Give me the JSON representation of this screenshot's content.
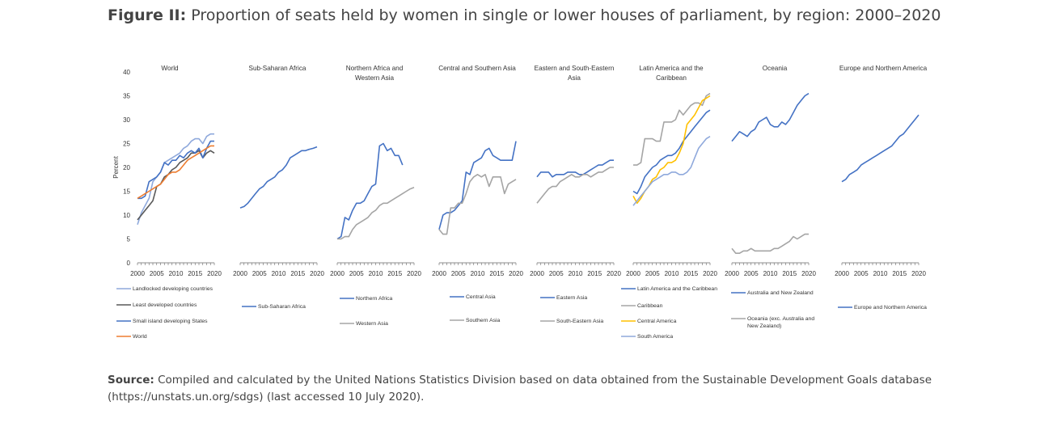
{
  "figure": {
    "label": "Figure II:",
    "title": "Proportion of seats held by women in single or lower houses of parliament, by region: 2000–2020"
  },
  "source": {
    "label": "Source:",
    "text": "Compiled and calculated by the United Nations Statistics Division based on data obtained from the Sustainable Development Goals database (https://unstats.un.org/sdgs) (last accessed 10 July 2020)."
  },
  "colors": {
    "blue": "#4472c4",
    "gray": "#a5a5a5",
    "dark": "#595959",
    "lightblue": "#8fa9dc",
    "orange": "#ed7d31",
    "yellow": "#ffc000"
  },
  "chart_data": {
    "type": "line",
    "ylabel": "Percent",
    "ylim": [
      0,
      40
    ],
    "yticks": [
      "0",
      "5",
      "10",
      "15",
      "20",
      "25",
      "30",
      "35",
      "40"
    ],
    "xticks": [
      "2000",
      "2005",
      "2010",
      "2015",
      "2020"
    ],
    "x": [
      2000,
      2001,
      2002,
      2003,
      2004,
      2005,
      2006,
      2007,
      2008,
      2009,
      2010,
      2011,
      2012,
      2013,
      2014,
      2015,
      2016,
      2017,
      2018,
      2019,
      2020
    ],
    "panels": [
      {
        "title": "World",
        "series": [
          {
            "name": "Landlocked developing countries",
            "color": "#8fa9dc",
            "values": [
              8.0,
              10.5,
              12.0,
              13.5,
              17.0,
              18.0,
              19.0,
              21.0,
              21.5,
              22.0,
              22.5,
              23.0,
              24.0,
              24.5,
              25.5,
              26.0,
              26.0,
              25.0,
              26.5,
              27.0,
              27.0
            ]
          },
          {
            "name": "Least developed countries",
            "color": "#595959",
            "values": [
              9.0,
              10.0,
              11.0,
              12.0,
              13.0,
              16.0,
              16.5,
              18.0,
              18.5,
              19.5,
              20.0,
              21.0,
              21.5,
              22.0,
              23.0,
              23.0,
              23.5,
              22.0,
              23.0,
              23.5,
              23.0
            ]
          },
          {
            "name": "Small island developing States",
            "color": "#4472c4",
            "values": [
              13.5,
              13.5,
              14.0,
              17.0,
              17.5,
              18.0,
              19.0,
              21.0,
              20.5,
              21.5,
              21.5,
              22.5,
              22.0,
              23.0,
              23.5,
              23.0,
              24.0,
              22.0,
              24.0,
              25.5,
              25.5
            ]
          },
          {
            "name": "World",
            "color": "#ed7d31",
            "values": [
              13.5,
              14.0,
              14.5,
              15.0,
              15.5,
              16.0,
              16.5,
              17.5,
              18.5,
              19.0,
              19.0,
              19.5,
              20.5,
              21.5,
              22.0,
              22.5,
              23.0,
              23.5,
              24.0,
              24.5,
              24.5
            ]
          }
        ]
      },
      {
        "title": "Sub-Saharan Africa",
        "series": [
          {
            "name": "Sub-Saharan Africa",
            "color": "#4472c4",
            "values": [
              11.5,
              11.8,
              12.5,
              13.5,
              14.5,
              15.5,
              16.0,
              17.0,
              17.5,
              18.0,
              19.0,
              19.5,
              20.5,
              22.0,
              22.5,
              23.0,
              23.5,
              23.5,
              23.8,
              24.0,
              24.3
            ]
          }
        ]
      },
      {
        "title": "Northern Africa and Western Asia",
        "series": [
          {
            "name": "Northern Africa",
            "color": "#4472c4",
            "values": [
              5.0,
              5.5,
              9.5,
              9.0,
              11.0,
              12.5,
              12.5,
              13.0,
              14.5,
              16.0,
              16.5,
              24.5,
              25.0,
              23.5,
              24.0,
              22.5,
              22.5,
              20.5,
              null,
              null,
              null
            ]
          },
          {
            "name": "Western Asia",
            "color": "#a5a5a5",
            "values": [
              5.0,
              5.0,
              5.5,
              5.5,
              7.0,
              8.0,
              8.5,
              9.0,
              9.5,
              10.5,
              11.0,
              12.0,
              12.5,
              12.5,
              13.0,
              13.5,
              14.0,
              14.5,
              15.0,
              15.5,
              15.8
            ]
          }
        ]
      },
      {
        "title": "Central and Southern Asia",
        "series": [
          {
            "name": "Central Asia",
            "color": "#4472c4",
            "values": [
              7.0,
              10.0,
              10.5,
              10.5,
              11.0,
              12.0,
              13.0,
              19.0,
              18.5,
              21.0,
              21.5,
              22.0,
              23.5,
              24.0,
              22.5,
              22.0,
              21.5,
              21.5,
              21.5,
              21.5,
              25.5
            ]
          },
          {
            "name": "Southern Asia",
            "color": "#a5a5a5",
            "values": [
              7.0,
              6.0,
              6.0,
              11.5,
              11.5,
              12.5,
              12.5,
              14.5,
              17.0,
              18.0,
              18.5,
              18.0,
              18.5,
              16.0,
              18.0,
              18.0,
              18.0,
              14.5,
              16.5,
              17.0,
              17.5
            ]
          }
        ]
      },
      {
        "title": "Eastern and South-Eastern Asia",
        "series": [
          {
            "name": "Eastern Asia",
            "color": "#4472c4",
            "values": [
              18.0,
              19.0,
              19.0,
              19.0,
              18.0,
              18.5,
              18.5,
              18.5,
              19.0,
              19.0,
              19.0,
              18.5,
              18.5,
              19.0,
              19.5,
              20.0,
              20.5,
              20.5,
              21.0,
              21.5,
              21.5
            ]
          },
          {
            "name": "South-Eastern Asia",
            "color": "#a5a5a5",
            "values": [
              12.5,
              13.5,
              14.5,
              15.5,
              16.0,
              16.0,
              17.0,
              17.5,
              18.0,
              18.5,
              18.0,
              18.0,
              18.5,
              18.5,
              18.0,
              18.5,
              19.0,
              19.0,
              19.5,
              20.0,
              20.0
            ]
          }
        ]
      },
      {
        "title": "Latin America and the Caribbean",
        "series": [
          {
            "name": "Latin America and the Caribbean",
            "color": "#4472c4",
            "values": [
              15.0,
              14.5,
              16.0,
              18.0,
              19.0,
              20.0,
              20.5,
              21.5,
              22.0,
              22.5,
              22.5,
              23.0,
              24.0,
              25.5,
              26.5,
              27.5,
              28.5,
              29.5,
              30.5,
              31.5,
              32.0
            ]
          },
          {
            "name": "Caribbean",
            "color": "#a5a5a5",
            "values": [
              20.5,
              20.5,
              21.0,
              26.0,
              26.0,
              26.0,
              25.5,
              25.5,
              29.5,
              29.5,
              29.5,
              30.0,
              32.0,
              31.0,
              32.0,
              33.0,
              33.5,
              33.5,
              33.0,
              35.0,
              35.5
            ]
          },
          {
            "name": "Central America",
            "color": "#ffc000",
            "values": [
              14.0,
              12.5,
              13.5,
              15.0,
              16.0,
              17.5,
              18.0,
              19.5,
              20.0,
              21.0,
              21.0,
              21.5,
              23.0,
              25.0,
              29.0,
              30.0,
              31.0,
              32.5,
              34.0,
              34.5,
              35.0
            ]
          },
          {
            "name": "South America",
            "color": "#8fa9dc",
            "values": [
              12.0,
              13.0,
              14.0,
              15.0,
              16.0,
              17.0,
              17.5,
              18.0,
              18.5,
              18.5,
              19.0,
              19.0,
              18.5,
              18.5,
              19.0,
              20.0,
              22.0,
              24.0,
              25.0,
              26.0,
              26.5
            ]
          }
        ]
      },
      {
        "title": "Oceania",
        "series": [
          {
            "name": "Australia and New Zealand",
            "color": "#4472c4",
            "values": [
              25.5,
              26.5,
              27.5,
              27.0,
              26.5,
              27.5,
              28.0,
              29.5,
              30.0,
              30.5,
              29.0,
              28.5,
              28.5,
              29.5,
              29.0,
              30.0,
              31.5,
              33.0,
              34.0,
              35.0,
              35.5
            ]
          },
          {
            "name": "Oceania (exc. Australia and New Zealand)",
            "color": "#a5a5a5",
            "values": [
              3.0,
              2.0,
              2.0,
              2.5,
              2.5,
              3.0,
              2.5,
              2.5,
              2.5,
              2.5,
              2.5,
              3.0,
              3.0,
              3.5,
              4.0,
              4.5,
              5.5,
              5.0,
              5.5,
              6.0,
              6.0
            ]
          }
        ]
      },
      {
        "title": "Europe and Northern America",
        "series": [
          {
            "name": "Europe and Northern America",
            "color": "#4472c4",
            "values": [
              17.0,
              17.5,
              18.5,
              19.0,
              19.5,
              20.5,
              21.0,
              21.5,
              22.0,
              22.5,
              23.0,
              23.5,
              24.0,
              24.5,
              25.5,
              26.5,
              27.0,
              28.0,
              29.0,
              30.0,
              31.0
            ]
          }
        ]
      }
    ]
  }
}
